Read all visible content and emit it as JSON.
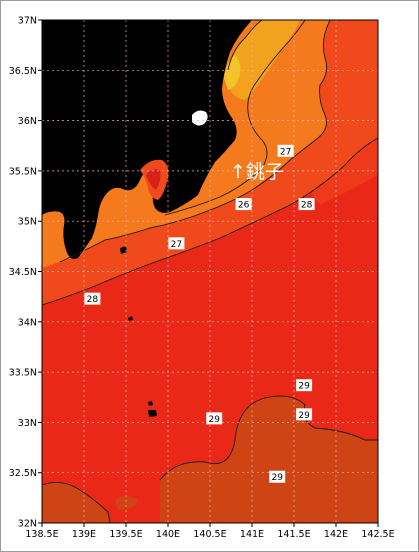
{
  "map": {
    "lon_range": [
      138.5,
      142.5
    ],
    "lat_range": [
      32,
      37
    ],
    "lon_ticks": [
      "138.5E",
      "139E",
      "139.5E",
      "140E",
      "140.5E",
      "141E",
      "141.5E",
      "142E",
      "142.5E"
    ],
    "lat_ticks": [
      "32N",
      "32.5N",
      "33N",
      "33.5N",
      "34N",
      "34.5N",
      "35N",
      "35.5N",
      "36N",
      "36.5N",
      "37N"
    ],
    "annotation": "↑銚子",
    "contour_labels": [
      {
        "text": "27",
        "lon": 141.4,
        "lat": 35.7
      },
      {
        "text": "26",
        "lon": 140.9,
        "lat": 35.17
      },
      {
        "text": "28",
        "lon": 141.65,
        "lat": 35.17
      },
      {
        "text": "27",
        "lon": 140.1,
        "lat": 34.78
      },
      {
        "text": "28",
        "lon": 139.1,
        "lat": 34.23
      },
      {
        "text": "29",
        "lon": 141.62,
        "lat": 33.37
      },
      {
        "text": "29",
        "lon": 141.62,
        "lat": 33.08
      },
      {
        "text": "29",
        "lon": 140.55,
        "lat": 33.04
      },
      {
        "text": "29",
        "lon": 141.3,
        "lat": 32.46
      }
    ],
    "colors": {
      "land": "#000000",
      "warm_29": "#cf4414",
      "sea_28": "#ea2818",
      "sea_27": "#f04a1c",
      "sea_26": "#f57a1e",
      "sea_25": "#f3a21e",
      "grid": "#f4b0b0",
      "contour": "#1a1a1a"
    }
  }
}
